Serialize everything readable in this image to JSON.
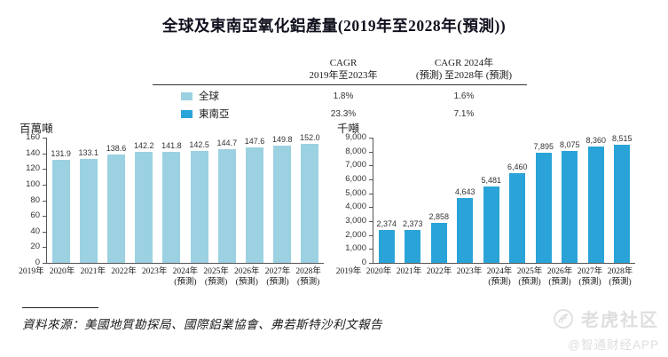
{
  "title": "全球及東南亞氧化鋁產量(2019年至2028年(預測))",
  "legend_table": {
    "col1_header_line1": "CAGR",
    "col1_header_line2": "2019年至2023年",
    "col2_header_line1": "CAGR 2024年",
    "col2_header_line2": "(預測) 至2028年 (預測)",
    "rows": [
      {
        "name": "全球",
        "swatch_color": "#9BD1E1",
        "cagr_2019_2023": "1.8%",
        "cagr_2024_2028": "1.6%"
      },
      {
        "name": "東南亞",
        "swatch_color": "#2AA3D8",
        "cagr_2019_2023": "23.3%",
        "cagr_2024_2028": "7.1%"
      }
    ]
  },
  "chart_data": [
    {
      "type": "bar",
      "series_name": "全球",
      "unit_label": "百萬噸",
      "categories": [
        "2019年",
        "2020年",
        "2021年",
        "2022年",
        "2023年",
        "2024年",
        "2025年",
        "2026年",
        "2027年",
        "2028年"
      ],
      "category_notes": [
        "",
        "",
        "",
        "",
        "",
        "(預測)",
        "(預測)",
        "(預測)",
        "(預測)",
        "(預測)"
      ],
      "values": [
        131.9,
        133.1,
        138.6,
        142.2,
        141.8,
        142.5,
        144.7,
        147.6,
        149.8,
        152.0
      ],
      "value_labels": [
        "131.9",
        "133.1",
        "138.6",
        "142.2",
        "141.8",
        "142.5",
        "144.7",
        "147.6",
        "149.8",
        "152.0"
      ],
      "ylim": [
        0,
        160
      ],
      "ytick_labels": [
        "0",
        "20",
        "40",
        "60",
        "80",
        "100",
        "120",
        "140",
        "160"
      ],
      "bar_color": "#9BD1E1",
      "grid": false,
      "legend_position": "top-table"
    },
    {
      "type": "bar",
      "series_name": "東南亞",
      "unit_label": "千噸",
      "categories": [
        "2019年",
        "2020年",
        "2021年",
        "2022年",
        "2023年",
        "2024年",
        "2025年",
        "2026年",
        "2027年",
        "2028年"
      ],
      "category_notes": [
        "",
        "",
        "",
        "",
        "",
        "(預測)",
        "(預測)",
        "(預測)",
        "(預測)",
        "(預測)"
      ],
      "values": [
        2374,
        2373,
        2858,
        4643,
        5481,
        6460,
        7895,
        8075,
        8360,
        8515
      ],
      "value_labels": [
        "2,374",
        "2,373",
        "2,858",
        "4,643",
        "5,481",
        "6,460",
        "7,895",
        "8,075",
        "8,360",
        "8,515"
      ],
      "ylim": [
        0,
        9000
      ],
      "ytick_labels": [
        "0",
        "1,000",
        "2,000",
        "3,000",
        "4,000",
        "5,000",
        "6,000",
        "7,000",
        "8,000",
        "9,000"
      ],
      "bar_color": "#2AA3D8",
      "grid": false,
      "legend_position": "top-table"
    }
  ],
  "source": "資料來源：美國地質勘探局、國際鋁業協會、弗若斯特沙利文報告",
  "watermark": {
    "icon": "tiger-circle-icon",
    "name": "老虎社区",
    "subtitle": "@智通财经APP",
    "color": "#dedede"
  },
  "colors": {
    "bar_light_blue": "#9BD1E1",
    "bar_dark_blue": "#2AA3D8",
    "axis": "#555555",
    "title_text": "#10101e"
  }
}
